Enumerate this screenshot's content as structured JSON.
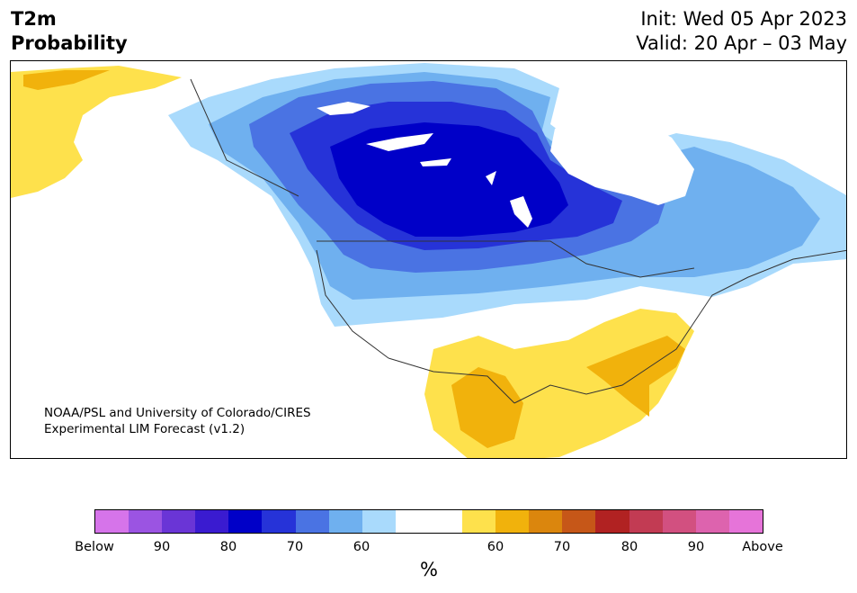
{
  "header": {
    "title_line1": "T2m",
    "title_line2": "Probability",
    "init": "Init: Wed 05 Apr 2023",
    "valid": "Valid: 20 Apr – 03 May"
  },
  "map": {
    "region": "North America",
    "credit_line1": "NOAA/PSL and University of Colorado/CIRES",
    "credit_line2": "Experimental LIM Forecast (v1.2)",
    "colors": {
      "below_60": "#a9dafc",
      "below_70": "#6fb0ef",
      "below_80": "#4a73e3",
      "below_90": "#2633d8",
      "below_max": "#0000c8",
      "above_60": "#fee14c",
      "above_70": "#f1b20c",
      "above_80": "#db860d",
      "neutral": "#ffffff",
      "border": "#333333"
    }
  },
  "colorbar": {
    "colors": [
      "#d674ea",
      "#9b54e2",
      "#6a35d6",
      "#3a1bd0",
      "#0000c8",
      "#2633d8",
      "#4a73e3",
      "#6fb0ef",
      "#a9dafc",
      "#ffffff",
      "#ffffff",
      "#fee14c",
      "#f1b20c",
      "#db860d",
      "#c65718",
      "#b12222",
      "#c23b53",
      "#d25080",
      "#dd63ae",
      "#e674d9"
    ],
    "tick_labels": [
      "Below",
      "90",
      "80",
      "70",
      "60",
      "60",
      "70",
      "80",
      "90",
      "Above"
    ],
    "unit": "%"
  }
}
